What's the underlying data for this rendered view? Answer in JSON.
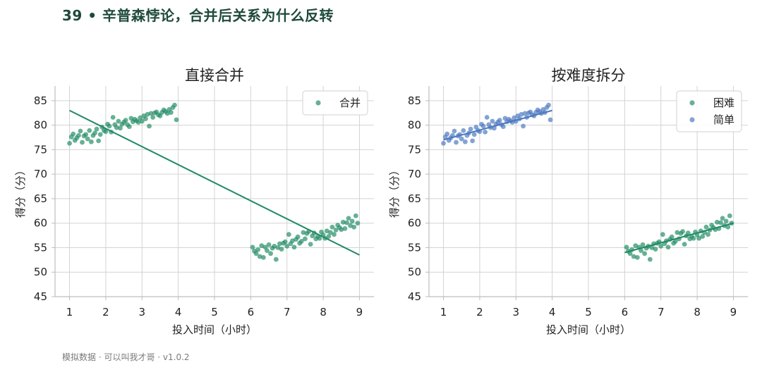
{
  "page": {
    "title": "39 • 辛普森悖论，合并后关系为什么反转",
    "footer": "模拟数据 · 可以叫我才哥 · v1.0.2"
  },
  "colors": {
    "green": "#1f8a64",
    "blue": "#4a78bf",
    "grid": "#d3d3d3",
    "axis": "#bdbdbd"
  },
  "chart_data": [
    {
      "type": "scatter",
      "title": "直接合并",
      "xlabel": "投入时间（小时）",
      "ylabel": "得分（分）",
      "xlim": [
        0.6,
        9.4
      ],
      "ylim": [
        45,
        88
      ],
      "xticks": [
        1,
        2,
        3,
        4,
        5,
        6,
        7,
        8,
        9
      ],
      "yticks": [
        45,
        50,
        55,
        60,
        65,
        70,
        75,
        80,
        85
      ],
      "grid": true,
      "legend_position": "top-right",
      "series": [
        {
          "name": "合并",
          "color": "#1f8a64",
          "groups": [
            {
              "x": [
                1.0,
                1.05,
                1.1,
                1.15,
                1.2,
                1.25,
                1.3,
                1.35,
                1.4,
                1.45,
                1.5,
                1.55,
                1.6,
                1.65,
                1.7,
                1.75,
                1.8,
                1.85,
                1.9,
                1.95,
                2.0,
                2.05,
                2.1,
                2.15,
                2.2,
                2.25,
                2.3,
                2.35,
                2.4,
                2.45,
                2.5,
                2.55,
                2.6,
                2.65,
                2.7,
                2.75,
                2.8,
                2.85,
                2.9,
                2.95,
                3.0,
                3.05,
                3.1,
                3.15,
                3.2,
                3.25,
                3.3,
                3.35,
                3.4,
                3.45,
                3.5,
                3.55,
                3.6,
                3.65,
                3.7,
                3.75,
                3.8,
                3.85,
                3.9,
                3.95
              ],
              "y": [
                76.3,
                77.6,
                78.2,
                76.9,
                77.4,
                77.9,
                78.8,
                76.5,
                77.8,
                78.1,
                77.2,
                78.9,
                76.6,
                77.9,
                78.4,
                79.2,
                76.8,
                78.1,
                79.6,
                78.9,
                78.7,
                80.2,
                79.8,
                78.6,
                81.6,
                80.1,
                79.5,
                80.8,
                79.4,
                80.2,
                80.6,
                81.0,
                80.1,
                79.7,
                81.4,
                80.7,
                81.2,
                80.9,
                80.6,
                81.5,
                80.8,
                81.9,
                81.3,
                82.2,
                79.8,
                82.4,
                81.6,
                82.5,
                82.7,
                82.1,
                81.9,
                82.6,
                83.1,
                82.8,
                82.4,
                83.2,
                82.6,
                83.6,
                84.1,
                81.1
              ]
            },
            {
              "x": [
                6.05,
                6.1,
                6.15,
                6.2,
                6.25,
                6.3,
                6.35,
                6.4,
                6.45,
                6.5,
                6.55,
                6.6,
                6.65,
                6.7,
                6.75,
                6.8,
                6.85,
                6.9,
                6.95,
                7.0,
                7.05,
                7.1,
                7.15,
                7.2,
                7.25,
                7.3,
                7.35,
                7.4,
                7.45,
                7.5,
                7.55,
                7.6,
                7.65,
                7.7,
                7.75,
                7.8,
                7.85,
                7.9,
                7.95,
                8.0,
                8.05,
                8.1,
                8.15,
                8.2,
                8.25,
                8.3,
                8.35,
                8.4,
                8.45,
                8.5,
                8.55,
                8.6,
                8.65,
                8.7,
                8.75,
                8.8,
                8.85,
                8.9,
                8.95
              ],
              "y": [
                55.1,
                54.3,
                53.8,
                54.6,
                53.2,
                55.4,
                53.0,
                55.1,
                54.4,
                55.6,
                53.8,
                54.9,
                55.3,
                52.6,
                55.0,
                55.8,
                54.7,
                55.9,
                56.2,
                55.3,
                57.7,
                55.8,
                56.4,
                55.1,
                56.7,
                57.2,
                55.9,
                56.3,
                58.1,
                56.8,
                57.9,
                58.3,
                55.7,
                57.4,
                58.0,
                56.8,
                57.3,
                56.9,
                58.2,
                57.6,
                56.9,
                58.4,
                57.3,
                58.1,
                59.2,
                57.7,
                58.6,
                59.6,
                59.1,
                58.7,
                60.2,
                58.9,
                60.1,
                61.0,
                59.5,
                60.4,
                59.2,
                61.5,
                60.0
              ]
            }
          ]
        }
      ],
      "trend_lines": [
        {
          "color": "#1f8a64",
          "x": [
            1,
            9
          ],
          "y": [
            83.0,
            53.5
          ]
        }
      ]
    },
    {
      "type": "scatter",
      "title": "按难度拆分",
      "xlabel": "投入时间（小时）",
      "ylabel": "得分（分）",
      "xlim": [
        0.6,
        9.4
      ],
      "ylim": [
        45,
        88
      ],
      "xticks": [
        1,
        2,
        3,
        4,
        5,
        6,
        7,
        8,
        9
      ],
      "yticks": [
        45,
        50,
        55,
        60,
        65,
        70,
        75,
        80,
        85
      ],
      "grid": true,
      "legend_position": "top-right",
      "series": [
        {
          "name": "困难",
          "color": "#1f8a64",
          "x": [
            6.05,
            6.1,
            6.15,
            6.2,
            6.25,
            6.3,
            6.35,
            6.4,
            6.45,
            6.5,
            6.55,
            6.6,
            6.65,
            6.7,
            6.75,
            6.8,
            6.85,
            6.9,
            6.95,
            7.0,
            7.05,
            7.1,
            7.15,
            7.2,
            7.25,
            7.3,
            7.35,
            7.4,
            7.45,
            7.5,
            7.55,
            7.6,
            7.65,
            7.7,
            7.75,
            7.8,
            7.85,
            7.9,
            7.95,
            8.0,
            8.05,
            8.1,
            8.15,
            8.2,
            8.25,
            8.3,
            8.35,
            8.4,
            8.45,
            8.5,
            8.55,
            8.6,
            8.65,
            8.7,
            8.75,
            8.8,
            8.85,
            8.9,
            8.95
          ],
          "y": [
            55.1,
            54.3,
            53.8,
            54.6,
            53.2,
            55.4,
            53.0,
            55.1,
            54.4,
            55.6,
            53.8,
            54.9,
            55.3,
            52.6,
            55.0,
            55.8,
            54.7,
            55.9,
            56.2,
            55.3,
            57.7,
            55.8,
            56.4,
            55.1,
            56.7,
            57.2,
            55.9,
            56.3,
            58.1,
            56.8,
            57.9,
            58.3,
            55.7,
            57.4,
            58.0,
            56.8,
            57.3,
            56.9,
            58.2,
            57.6,
            56.9,
            58.4,
            57.3,
            58.1,
            59.2,
            57.7,
            58.6,
            59.6,
            59.1,
            58.7,
            60.2,
            58.9,
            60.1,
            61.0,
            59.5,
            60.4,
            59.2,
            61.5,
            60.0
          ]
        },
        {
          "name": "简单",
          "color": "#4a78bf",
          "x": [
            1.0,
            1.05,
            1.1,
            1.15,
            1.2,
            1.25,
            1.3,
            1.35,
            1.4,
            1.45,
            1.5,
            1.55,
            1.6,
            1.65,
            1.7,
            1.75,
            1.8,
            1.85,
            1.9,
            1.95,
            2.0,
            2.05,
            2.1,
            2.15,
            2.2,
            2.25,
            2.3,
            2.35,
            2.4,
            2.45,
            2.5,
            2.55,
            2.6,
            2.65,
            2.7,
            2.75,
            2.8,
            2.85,
            2.9,
            2.95,
            3.0,
            3.05,
            3.1,
            3.15,
            3.2,
            3.25,
            3.3,
            3.35,
            3.4,
            3.45,
            3.5,
            3.55,
            3.6,
            3.65,
            3.7,
            3.75,
            3.8,
            3.85,
            3.9,
            3.95
          ],
          "y": [
            76.3,
            77.6,
            78.2,
            76.9,
            77.4,
            77.9,
            78.8,
            76.5,
            77.8,
            78.1,
            77.2,
            78.9,
            76.6,
            77.9,
            78.4,
            79.2,
            76.8,
            78.1,
            79.6,
            78.9,
            78.7,
            80.2,
            79.8,
            78.6,
            81.6,
            80.1,
            79.5,
            80.8,
            79.4,
            80.2,
            80.6,
            81.0,
            80.1,
            79.7,
            81.4,
            80.7,
            81.2,
            80.9,
            80.6,
            81.5,
            80.8,
            81.9,
            81.3,
            82.2,
            79.8,
            82.4,
            81.6,
            82.5,
            82.7,
            82.1,
            81.9,
            82.6,
            83.1,
            82.8,
            82.4,
            83.2,
            82.6,
            83.6,
            84.1,
            81.1
          ]
        }
      ],
      "trend_lines": [
        {
          "color": "#1f8a64",
          "x": [
            6,
            9
          ],
          "y": [
            54.0,
            60.0
          ]
        },
        {
          "color": "#4a78bf",
          "x": [
            1,
            4
          ],
          "y": [
            77.0,
            83.0
          ]
        }
      ]
    }
  ]
}
